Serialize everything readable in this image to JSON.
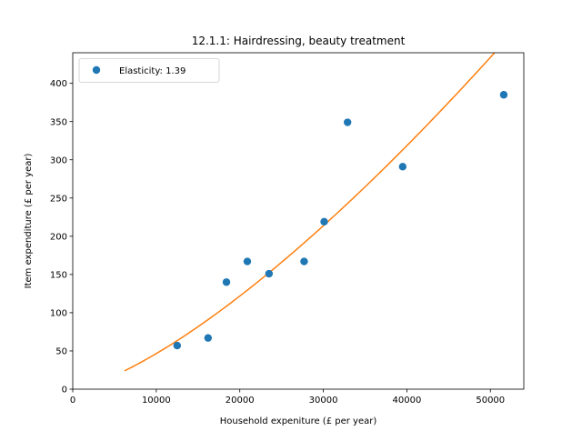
{
  "chart_data": {
    "type": "scatter",
    "title": "12.1.1: Hairdressing, beauty treatment",
    "xlabel": "Household expeniture (£ per year)",
    "ylabel": "Item expenditure (£ per year)",
    "xlim": [
      0,
      54000
    ],
    "ylim": [
      0,
      440
    ],
    "xticks": [
      0,
      10000,
      20000,
      30000,
      40000,
      50000
    ],
    "yticks": [
      0,
      50,
      100,
      150,
      200,
      250,
      300,
      350,
      400
    ],
    "grid": false,
    "legend_position": "top-left",
    "series": [
      {
        "name": "Elasticity: 1.39",
        "kind": "scatter",
        "color": "#1f77b4",
        "points": [
          {
            "x": 12500,
            "y": 57
          },
          {
            "x": 16200,
            "y": 67
          },
          {
            "x": 18400,
            "y": 140
          },
          {
            "x": 20900,
            "y": 167
          },
          {
            "x": 23500,
            "y": 151
          },
          {
            "x": 27700,
            "y": 167
          },
          {
            "x": 30100,
            "y": 219
          },
          {
            "x": 32900,
            "y": 349
          },
          {
            "x": 39500,
            "y": 291
          },
          {
            "x": 51600,
            "y": 385
          }
        ]
      },
      {
        "kind": "line",
        "color": "#ff7f0e",
        "curve": "power",
        "x_start": 6200,
        "x_end": 50500,
        "y_start": 24,
        "y_end": 440
      }
    ]
  }
}
